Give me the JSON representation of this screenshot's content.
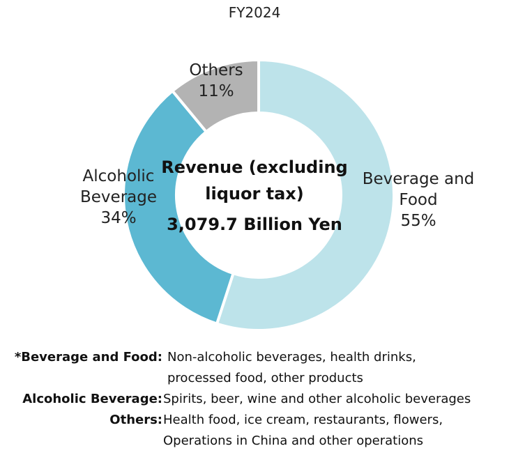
{
  "chart_data": {
    "type": "pie",
    "title": "FY2024",
    "center_label": [
      "Revenue (excluding",
      "liquor tax)",
      "3,079.7 Billion Yen"
    ],
    "slices": [
      {
        "label": "Beverage and Food",
        "label_lines": [
          "Beverage and",
          "Food"
        ],
        "value": 55,
        "value_label": "55%",
        "color": "#bde3ea"
      },
      {
        "label": "Alcoholic Beverage",
        "label_lines": [
          "Alcoholic",
          "Beverage"
        ],
        "value": 34,
        "value_label": "34%",
        "color": "#5cb8d2"
      },
      {
        "label": "Others",
        "label_lines": [
          "Others"
        ],
        "value": 11,
        "value_label": "11%",
        "color": "#b3b3b3"
      }
    ],
    "donut": true
  },
  "notes": [
    {
      "key": "*Beverage and Food:",
      "lines": [
        "Non-alcoholic beverages, health drinks,",
        "processed food, other products"
      ]
    },
    {
      "key": "Alcoholic Beverage:",
      "lines": [
        "Spirits, beer, wine and other alcoholic beverages"
      ]
    },
    {
      "key": "Others:",
      "lines": [
        "Health food, ice cream, restaurants, flowers,",
        "Operations in China and other operations"
      ]
    }
  ]
}
